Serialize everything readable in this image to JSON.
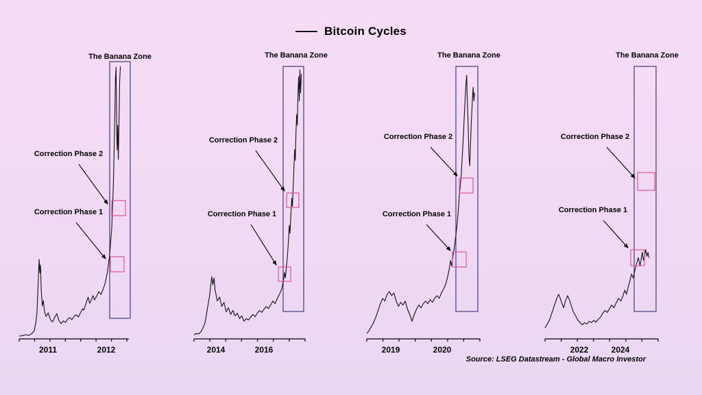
{
  "title": "Bitcoin Cycles",
  "source": "Source: LSEG Datastream - Global Macro Investor",
  "labels": {
    "banana_zone": "The Banana Zone",
    "correction_phase_2": "Correction Phase 2",
    "correction_phase_1": "Correction Phase 1"
  },
  "colors": {
    "background_top": "#f8dcf6",
    "background_bottom": "#e9d8f3",
    "line": "#111111",
    "banana_box_border": "#3d3d78",
    "correction_box_border": "#e0559a",
    "text": "#000000"
  },
  "chart_data": {
    "type": "line",
    "title": "Bitcoin Cycles",
    "ylabel": "",
    "y_scale": "normalized-0-1",
    "panels": [
      {
        "name": "cycle-2011-2013",
        "x_ticks": [
          "2011",
          "2012"
        ],
        "points": [
          [
            0.0,
            0.01
          ],
          [
            0.03,
            0.012
          ],
          [
            0.06,
            0.015
          ],
          [
            0.09,
            0.013
          ],
          [
            0.12,
            0.02
          ],
          [
            0.14,
            0.03
          ],
          [
            0.155,
            0.06
          ],
          [
            0.165,
            0.095
          ],
          [
            0.175,
            0.19
          ],
          [
            0.185,
            0.29
          ],
          [
            0.192,
            0.24
          ],
          [
            0.198,
            0.27
          ],
          [
            0.205,
            0.175
          ],
          [
            0.215,
            0.12
          ],
          [
            0.225,
            0.14
          ],
          [
            0.235,
            0.1
          ],
          [
            0.25,
            0.082
          ],
          [
            0.27,
            0.095
          ],
          [
            0.29,
            0.07
          ],
          [
            0.31,
            0.062
          ],
          [
            0.33,
            0.078
          ],
          [
            0.35,
            0.092
          ],
          [
            0.37,
            0.066
          ],
          [
            0.39,
            0.056
          ],
          [
            0.41,
            0.066
          ],
          [
            0.43,
            0.06
          ],
          [
            0.45,
            0.072
          ],
          [
            0.47,
            0.078
          ],
          [
            0.49,
            0.07
          ],
          [
            0.51,
            0.082
          ],
          [
            0.53,
            0.088
          ],
          [
            0.55,
            0.08
          ],
          [
            0.57,
            0.096
          ],
          [
            0.59,
            0.11
          ],
          [
            0.6,
            0.105
          ],
          [
            0.62,
            0.128
          ],
          [
            0.64,
            0.152
          ],
          [
            0.655,
            0.13
          ],
          [
            0.67,
            0.142
          ],
          [
            0.685,
            0.158
          ],
          [
            0.7,
            0.142
          ],
          [
            0.72,
            0.156
          ],
          [
            0.74,
            0.172
          ],
          [
            0.76,
            0.162
          ],
          [
            0.78,
            0.182
          ],
          [
            0.8,
            0.205
          ],
          [
            0.82,
            0.245
          ],
          [
            0.84,
            0.305
          ],
          [
            0.86,
            0.405
          ],
          [
            0.875,
            0.565
          ],
          [
            0.886,
            0.755
          ],
          [
            0.894,
            0.95
          ],
          [
            0.9,
            0.992
          ],
          [
            0.905,
            0.8
          ],
          [
            0.91,
            0.69
          ],
          [
            0.916,
            0.78
          ],
          [
            0.921,
            0.655
          ],
          [
            0.927,
            0.78
          ],
          [
            0.934,
            0.945
          ],
          [
            0.94,
            0.995
          ]
        ]
      },
      {
        "name": "cycle-2014-2017",
        "x_ticks": [
          "2014",
          "2016"
        ],
        "points": [
          [
            0.0,
            0.015
          ],
          [
            0.02,
            0.02
          ],
          [
            0.04,
            0.018
          ],
          [
            0.06,
            0.025
          ],
          [
            0.08,
            0.04
          ],
          [
            0.1,
            0.06
          ],
          [
            0.12,
            0.11
          ],
          [
            0.14,
            0.16
          ],
          [
            0.16,
            0.23
          ],
          [
            0.17,
            0.2
          ],
          [
            0.18,
            0.225
          ],
          [
            0.19,
            0.18
          ],
          [
            0.21,
            0.14
          ],
          [
            0.23,
            0.155
          ],
          [
            0.25,
            0.12
          ],
          [
            0.27,
            0.135
          ],
          [
            0.29,
            0.1
          ],
          [
            0.31,
            0.115
          ],
          [
            0.33,
            0.09
          ],
          [
            0.35,
            0.105
          ],
          [
            0.37,
            0.085
          ],
          [
            0.39,
            0.095
          ],
          [
            0.41,
            0.075
          ],
          [
            0.43,
            0.085
          ],
          [
            0.45,
            0.065
          ],
          [
            0.47,
            0.075
          ],
          [
            0.49,
            0.07
          ],
          [
            0.51,
            0.08
          ],
          [
            0.53,
            0.09
          ],
          [
            0.55,
            0.082
          ],
          [
            0.57,
            0.095
          ],
          [
            0.59,
            0.105
          ],
          [
            0.61,
            0.098
          ],
          [
            0.63,
            0.11
          ],
          [
            0.65,
            0.12
          ],
          [
            0.67,
            0.112
          ],
          [
            0.69,
            0.125
          ],
          [
            0.71,
            0.14
          ],
          [
            0.73,
            0.13
          ],
          [
            0.75,
            0.15
          ],
          [
            0.77,
            0.165
          ],
          [
            0.79,
            0.185
          ],
          [
            0.805,
            0.215
          ],
          [
            0.815,
            0.245
          ],
          [
            0.822,
            0.225
          ],
          [
            0.83,
            0.26
          ],
          [
            0.84,
            0.3
          ],
          [
            0.85,
            0.36
          ],
          [
            0.858,
            0.42
          ],
          [
            0.864,
            0.39
          ],
          [
            0.872,
            0.46
          ],
          [
            0.88,
            0.52
          ],
          [
            0.886,
            0.49
          ],
          [
            0.893,
            0.56
          ],
          [
            0.9,
            0.64
          ],
          [
            0.906,
            0.7
          ],
          [
            0.912,
            0.66
          ],
          [
            0.918,
            0.76
          ],
          [
            0.924,
            0.83
          ],
          [
            0.93,
            0.79
          ],
          [
            0.936,
            0.9
          ],
          [
            0.942,
            0.97
          ],
          [
            0.948,
            0.88
          ],
          [
            0.954,
            0.995
          ],
          [
            0.96,
            0.91
          ],
          [
            0.966,
            0.98
          ]
        ]
      },
      {
        "name": "cycle-2019-2021",
        "x_ticks": [
          "2019",
          "2020"
        ],
        "points": [
          [
            0.0,
            0.02
          ],
          [
            0.02,
            0.03
          ],
          [
            0.04,
            0.045
          ],
          [
            0.06,
            0.06
          ],
          [
            0.08,
            0.08
          ],
          [
            0.1,
            0.105
          ],
          [
            0.12,
            0.13
          ],
          [
            0.14,
            0.15
          ],
          [
            0.16,
            0.14
          ],
          [
            0.18,
            0.165
          ],
          [
            0.2,
            0.175
          ],
          [
            0.22,
            0.16
          ],
          [
            0.24,
            0.17
          ],
          [
            0.26,
            0.14
          ],
          [
            0.28,
            0.12
          ],
          [
            0.3,
            0.135
          ],
          [
            0.32,
            0.125
          ],
          [
            0.34,
            0.14
          ],
          [
            0.36,
            0.11
          ],
          [
            0.38,
            0.09
          ],
          [
            0.4,
            0.065
          ],
          [
            0.42,
            0.09
          ],
          [
            0.44,
            0.11
          ],
          [
            0.46,
            0.125
          ],
          [
            0.48,
            0.115
          ],
          [
            0.5,
            0.13
          ],
          [
            0.52,
            0.14
          ],
          [
            0.54,
            0.13
          ],
          [
            0.56,
            0.145
          ],
          [
            0.58,
            0.135
          ],
          [
            0.6,
            0.15
          ],
          [
            0.62,
            0.16
          ],
          [
            0.64,
            0.15
          ],
          [
            0.66,
            0.17
          ],
          [
            0.68,
            0.185
          ],
          [
            0.7,
            0.205
          ],
          [
            0.715,
            0.23
          ],
          [
            0.73,
            0.26
          ],
          [
            0.74,
            0.29
          ],
          [
            0.75,
            0.27
          ],
          [
            0.76,
            0.3
          ],
          [
            0.775,
            0.34
          ],
          [
            0.79,
            0.39
          ],
          [
            0.8,
            0.43
          ],
          [
            0.81,
            0.48
          ],
          [
            0.82,
            0.54
          ],
          [
            0.828,
            0.57
          ],
          [
            0.836,
            0.61
          ],
          [
            0.845,
            0.68
          ],
          [
            0.855,
            0.76
          ],
          [
            0.865,
            0.85
          ],
          [
            0.875,
            0.93
          ],
          [
            0.883,
            0.975
          ],
          [
            0.89,
            0.87
          ],
          [
            0.897,
            0.78
          ],
          [
            0.903,
            0.68
          ],
          [
            0.91,
            0.64
          ],
          [
            0.917,
            0.72
          ],
          [
            0.924,
            0.8
          ],
          [
            0.932,
            0.87
          ],
          [
            0.94,
            0.93
          ],
          [
            0.947,
            0.88
          ],
          [
            0.953,
            0.91
          ]
        ]
      },
      {
        "name": "cycle-2022-2024",
        "x_ticks": [
          "2022",
          "2024"
        ],
        "points": [
          [
            0.0,
            0.04
          ],
          [
            0.02,
            0.055
          ],
          [
            0.04,
            0.07
          ],
          [
            0.06,
            0.095
          ],
          [
            0.08,
            0.12
          ],
          [
            0.1,
            0.145
          ],
          [
            0.12,
            0.165
          ],
          [
            0.135,
            0.15
          ],
          [
            0.15,
            0.13
          ],
          [
            0.165,
            0.115
          ],
          [
            0.18,
            0.14
          ],
          [
            0.2,
            0.16
          ],
          [
            0.215,
            0.145
          ],
          [
            0.23,
            0.125
          ],
          [
            0.25,
            0.1
          ],
          [
            0.27,
            0.085
          ],
          [
            0.29,
            0.07
          ],
          [
            0.31,
            0.06
          ],
          [
            0.33,
            0.052
          ],
          [
            0.35,
            0.06
          ],
          [
            0.37,
            0.055
          ],
          [
            0.39,
            0.065
          ],
          [
            0.41,
            0.06
          ],
          [
            0.43,
            0.068
          ],
          [
            0.45,
            0.062
          ],
          [
            0.47,
            0.072
          ],
          [
            0.49,
            0.08
          ],
          [
            0.51,
            0.095
          ],
          [
            0.53,
            0.105
          ],
          [
            0.55,
            0.098
          ],
          [
            0.57,
            0.112
          ],
          [
            0.59,
            0.125
          ],
          [
            0.61,
            0.115
          ],
          [
            0.63,
            0.135
          ],
          [
            0.65,
            0.15
          ],
          [
            0.67,
            0.14
          ],
          [
            0.69,
            0.16
          ],
          [
            0.705,
            0.18
          ],
          [
            0.72,
            0.165
          ],
          [
            0.735,
            0.19
          ],
          [
            0.75,
            0.215
          ],
          [
            0.765,
            0.24
          ],
          [
            0.78,
            0.225
          ],
          [
            0.795,
            0.255
          ],
          [
            0.81,
            0.28
          ],
          [
            0.825,
            0.3
          ],
          [
            0.84,
            0.27
          ],
          [
            0.85,
            0.295
          ],
          [
            0.86,
            0.32
          ],
          [
            0.87,
            0.29
          ],
          [
            0.88,
            0.31
          ],
          [
            0.89,
            0.33
          ],
          [
            0.9,
            0.305
          ],
          [
            0.91,
            0.32
          ],
          [
            0.92,
            0.3
          ]
        ]
      }
    ]
  }
}
